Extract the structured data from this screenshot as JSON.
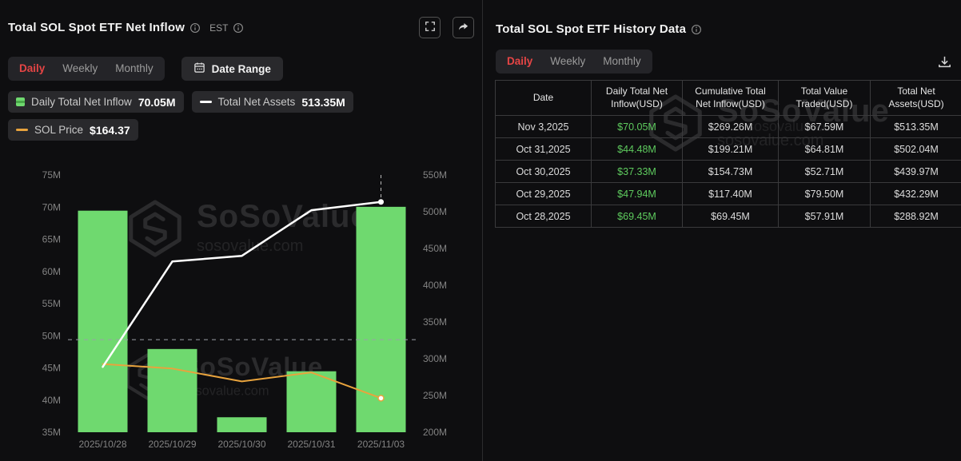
{
  "colors": {
    "background": "#0e0e10",
    "accent_red": "#e64545",
    "bar_green": "#6fd96f",
    "table_green": "#5ecb5e",
    "line_white": "#ffffff",
    "line_orange": "#e8a33d",
    "chip_bg": "#29292c",
    "border": "#3a3a3c",
    "muted_text": "#9a9a9a"
  },
  "icons": [
    "info-icon",
    "fullscreen-icon",
    "share-icon",
    "calendar-icon",
    "download-icon",
    "sosovalue-logo-icon"
  ],
  "watermark": {
    "brand": "SoSoValue",
    "domain": "sosovalue.com"
  },
  "left_panel": {
    "title": "Total SOL Spot ETF Net Inflow",
    "timezone_label": "EST",
    "tabs": [
      "Daily",
      "Weekly",
      "Monthly"
    ],
    "active_tab": "Daily",
    "date_range_label": "Date Range",
    "legend": [
      {
        "label": "Daily Total Net Inflow",
        "value": "70.05M",
        "swatch": "bar-green"
      },
      {
        "label": "Total Net Assets",
        "value": "513.35M",
        "swatch": "line-white"
      },
      {
        "label": "SOL Price",
        "value": "$164.37",
        "swatch": "line-orange"
      }
    ]
  },
  "chart_data": {
    "type": "bar",
    "title": "Total SOL Spot ETF Net Inflow",
    "categories": [
      "2025/10/28",
      "2025/10/29",
      "2025/10/30",
      "2025/10/31",
      "2025/11/03"
    ],
    "series": [
      {
        "name": "Daily Total Net Inflow",
        "type": "bar",
        "axis": "left",
        "unit": "M USD",
        "values": [
          69.45,
          47.94,
          37.33,
          44.48,
          70.05
        ],
        "color": "#6fd96f"
      },
      {
        "name": "Total Net Assets",
        "type": "line",
        "axis": "right",
        "unit": "M USD",
        "values": [
          288.92,
          432.29,
          439.97,
          502.04,
          513.35
        ],
        "color": "#ffffff"
      },
      {
        "name": "SOL Price",
        "type": "line",
        "axis": "hidden",
        "last_value_label": "$164.37",
        "plot_values_left_axis_scale": [
          45.6,
          44.9,
          42.9,
          44.3,
          40.3
        ],
        "color": "#e8a33d"
      }
    ],
    "left_axis": {
      "min": 35,
      "max": 75,
      "ticks": [
        "75M",
        "70M",
        "65M",
        "60M",
        "55M",
        "50M",
        "45M",
        "40M",
        "35M"
      ]
    },
    "right_axis": {
      "min": 200,
      "max": 550,
      "ticks": [
        "550M",
        "500M",
        "450M",
        "400M",
        "350M",
        "300M",
        "250M",
        "200M"
      ]
    },
    "reference_line_left_axis": 49.4,
    "highlight_category": "2025/11/03",
    "legend_position": "top",
    "grid": false
  },
  "right_panel": {
    "title": "Total SOL Spot ETF History Data",
    "tabs": [
      "Daily",
      "Weekly",
      "Monthly"
    ],
    "active_tab": "Daily",
    "table": {
      "headers": [
        "Date",
        "Daily Total Net\nInflow(USD)",
        "Cumulative Total\nNet Inflow(USD)",
        "Total Value\nTraded(USD)",
        "Total Net\nAssets(USD)"
      ],
      "rows": [
        {
          "date": "Nov 3,2025",
          "daily_net_inflow": "$70.05M",
          "cumulative_net_inflow": "$269.26M",
          "value_traded": "$67.59M",
          "net_assets": "$513.35M"
        },
        {
          "date": "Oct 31,2025",
          "daily_net_inflow": "$44.48M",
          "cumulative_net_inflow": "$199.21M",
          "value_traded": "$64.81M",
          "net_assets": "$502.04M"
        },
        {
          "date": "Oct 30,2025",
          "daily_net_inflow": "$37.33M",
          "cumulative_net_inflow": "$154.73M",
          "value_traded": "$52.71M",
          "net_assets": "$439.97M"
        },
        {
          "date": "Oct 29,2025",
          "daily_net_inflow": "$47.94M",
          "cumulative_net_inflow": "$117.40M",
          "value_traded": "$79.50M",
          "net_assets": "$432.29M"
        },
        {
          "date": "Oct 28,2025",
          "daily_net_inflow": "$69.45M",
          "cumulative_net_inflow": "$69.45M",
          "value_traded": "$57.91M",
          "net_assets": "$288.92M"
        }
      ]
    }
  }
}
